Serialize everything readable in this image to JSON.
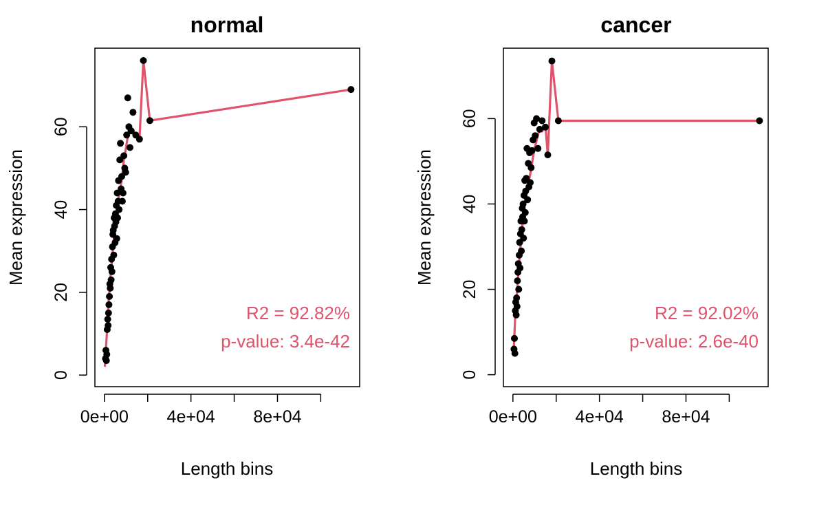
{
  "chart_data": [
    {
      "type": "scatter",
      "title": "normal",
      "xlabel": "Length bins",
      "ylabel": "Mean expression",
      "xlim": [
        -4400,
        118000
      ],
      "ylim": [
        -2.8,
        79
      ],
      "xticks": [
        0,
        20000,
        40000,
        60000,
        80000,
        100000
      ],
      "xtick_labels": [
        "0e+00",
        "",
        "4e+04",
        "",
        "8e+04",
        ""
      ],
      "yticks": [
        0,
        20,
        40,
        60
      ],
      "ytick_labels": [
        "0",
        "20",
        "40",
        "60"
      ],
      "grid": false,
      "legend": "none",
      "colors": {
        "points": "#000000",
        "fit": "#DF536B",
        "annotation": "#DF536B"
      },
      "annotations": [
        "R2 = 92.82%",
        "p-value: 3.4e-42"
      ],
      "points": [
        [
          500,
          4
        ],
        [
          700,
          6
        ],
        [
          900,
          3.5
        ],
        [
          1100,
          5
        ],
        [
          1300,
          11
        ],
        [
          1500,
          13.5
        ],
        [
          1700,
          12
        ],
        [
          1900,
          15
        ],
        [
          2100,
          17
        ],
        [
          2300,
          19
        ],
        [
          2500,
          22
        ],
        [
          2700,
          21
        ],
        [
          2900,
          26
        ],
        [
          3100,
          23
        ],
        [
          3300,
          28
        ],
        [
          3500,
          25
        ],
        [
          3700,
          31
        ],
        [
          3900,
          34
        ],
        [
          4100,
          35
        ],
        [
          4300,
          29
        ],
        [
          4500,
          38
        ],
        [
          4700,
          36
        ],
        [
          4900,
          32
        ],
        [
          5100,
          39
        ],
        [
          5300,
          37
        ],
        [
          5500,
          41
        ],
        [
          5700,
          33
        ],
        [
          5900,
          44
        ],
        [
          6100,
          38
        ],
        [
          6300,
          42
        ],
        [
          6500,
          47
        ],
        [
          6800,
          40
        ],
        [
          7100,
          52
        ],
        [
          7400,
          56
        ],
        [
          7700,
          45
        ],
        [
          8000,
          48
        ],
        [
          8300,
          42
        ],
        [
          8600,
          44
        ],
        [
          9000,
          53
        ],
        [
          9400,
          50
        ],
        [
          9800,
          49
        ],
        [
          10300,
          58
        ],
        [
          10800,
          67
        ],
        [
          11300,
          60
        ],
        [
          11800,
          55
        ],
        [
          12400,
          59
        ],
        [
          13200,
          63.5
        ],
        [
          14500,
          58
        ],
        [
          16200,
          57
        ],
        [
          18000,
          76
        ],
        [
          21000,
          61.5
        ],
        [
          114000,
          69
        ]
      ],
      "fit": [
        [
          200,
          2
        ],
        [
          1000,
          9
        ],
        [
          2000,
          18
        ],
        [
          3000,
          25
        ],
        [
          4000,
          31
        ],
        [
          5000,
          36
        ],
        [
          6000,
          41
        ],
        [
          7000,
          44.5
        ],
        [
          8000,
          47
        ],
        [
          9000,
          52
        ],
        [
          10000,
          55
        ],
        [
          11500,
          60
        ],
        [
          13000,
          59
        ],
        [
          14500,
          58
        ],
        [
          16200,
          57
        ],
        [
          18000,
          76
        ],
        [
          21000,
          61.5
        ],
        [
          114000,
          69
        ]
      ]
    },
    {
      "type": "scatter",
      "title": "cancer",
      "xlabel": "Length bins",
      "ylabel": "Mean expression",
      "xlim": [
        -4400,
        118000
      ],
      "ylim": [
        -2.8,
        76.5
      ],
      "xticks": [
        0,
        20000,
        40000,
        60000,
        80000,
        100000
      ],
      "xtick_labels": [
        "0e+00",
        "",
        "4e+04",
        "",
        "8e+04",
        ""
      ],
      "yticks": [
        0,
        20,
        40,
        60
      ],
      "ytick_labels": [
        "0",
        "20",
        "40",
        "60"
      ],
      "grid": false,
      "legend": "none",
      "colors": {
        "points": "#000000",
        "fit": "#DF536B",
        "annotation": "#DF536B"
      },
      "annotations": [
        "R2 = 92.02%",
        "p-value: 2.6e-40"
      ],
      "points": [
        [
          500,
          6
        ],
        [
          700,
          8.5
        ],
        [
          900,
          5
        ],
        [
          1100,
          15
        ],
        [
          1300,
          17
        ],
        [
          1500,
          14
        ],
        [
          1700,
          18
        ],
        [
          1900,
          16
        ],
        [
          2100,
          22
        ],
        [
          2300,
          24
        ],
        [
          2500,
          26
        ],
        [
          2700,
          20
        ],
        [
          2900,
          28
        ],
        [
          3100,
          31
        ],
        [
          3300,
          25
        ],
        [
          3500,
          33
        ],
        [
          3700,
          36
        ],
        [
          3900,
          29
        ],
        [
          4100,
          34
        ],
        [
          4300,
          39
        ],
        [
          4500,
          37
        ],
        [
          4700,
          40
        ],
        [
          4900,
          32
        ],
        [
          5100,
          42
        ],
        [
          5300,
          36
        ],
        [
          5500,
          45.5
        ],
        [
          5700,
          38
        ],
        [
          5900,
          43
        ],
        [
          6200,
          46
        ],
        [
          6500,
          53
        ],
        [
          6800,
          41
        ],
        [
          7100,
          49.5
        ],
        [
          7400,
          44
        ],
        [
          7700,
          52
        ],
        [
          8000,
          45
        ],
        [
          8400,
          48.5
        ],
        [
          8800,
          52.5
        ],
        [
          9300,
          55
        ],
        [
          9800,
          59
        ],
        [
          10300,
          56
        ],
        [
          10900,
          60
        ],
        [
          11600,
          53
        ],
        [
          12400,
          57.5
        ],
        [
          13500,
          59.5
        ],
        [
          15000,
          58
        ],
        [
          16100,
          51.5
        ],
        [
          18000,
          73.5
        ],
        [
          21000,
          59.5
        ],
        [
          114000,
          59.5
        ]
      ],
      "fit": [
        [
          300,
          5
        ],
        [
          1000,
          13
        ],
        [
          2000,
          20
        ],
        [
          3000,
          27
        ],
        [
          4000,
          33
        ],
        [
          5000,
          38
        ],
        [
          6000,
          41.5
        ],
        [
          7000,
          44.5
        ],
        [
          8000,
          47
        ],
        [
          9000,
          50
        ],
        [
          10000,
          53
        ],
        [
          11000,
          55
        ],
        [
          12500,
          58
        ],
        [
          13500,
          57
        ],
        [
          15000,
          58.5
        ],
        [
          16100,
          51.5
        ],
        [
          18000,
          73.5
        ],
        [
          21000,
          59.5
        ],
        [
          114000,
          59.5
        ]
      ]
    }
  ]
}
